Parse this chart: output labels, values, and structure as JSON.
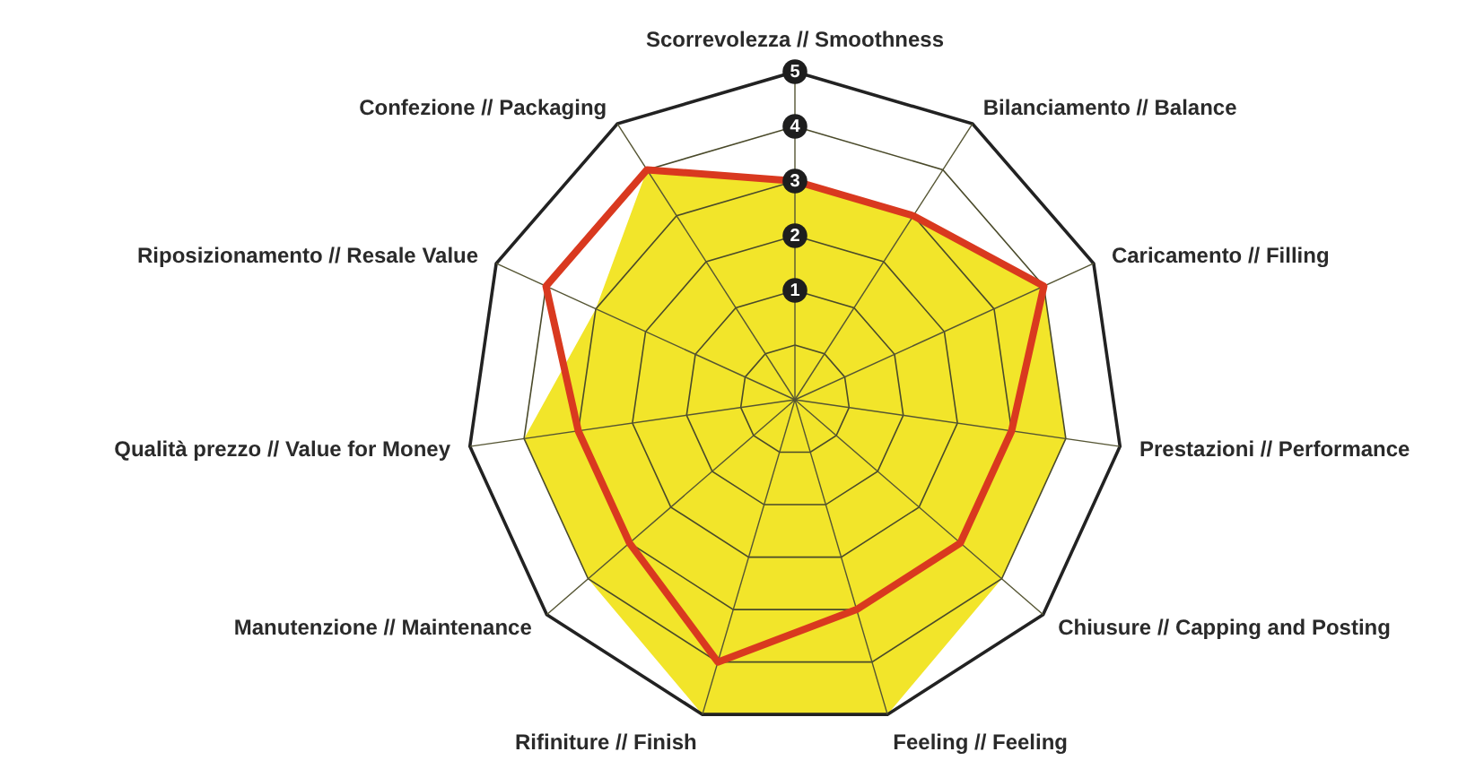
{
  "chart_data": {
    "type": "radar",
    "categories": [
      "Scorrevolezza // Smoothness",
      "Bilanciamento // Balance",
      "Caricamento // Filling",
      "Prestazioni // Performance",
      "Chiusure // Capping and Posting",
      "Feeling // Feeling",
      "Rifiniture // Finish",
      "Manutenzione // Maintenance",
      "Qualità prezzo // Value for Money",
      "Riposizionamento // Resale Value",
      "Confezione // Packaging"
    ],
    "series": [
      {
        "type": "area",
        "color": "#f2e52a",
        "values": [
          3,
          3,
          4,
          4,
          4,
          5,
          5,
          4,
          4,
          3,
          4
        ]
      },
      {
        "color": "#d9391f",
        "values": [
          3,
          3,
          4,
          3,
          3,
          3,
          4,
          3,
          3,
          4,
          4
        ]
      }
    ],
    "ylim": [
      -1,
      5
    ],
    "yticks": [
      1,
      2,
      3,
      4,
      5
    ],
    "grid": true
  }
}
